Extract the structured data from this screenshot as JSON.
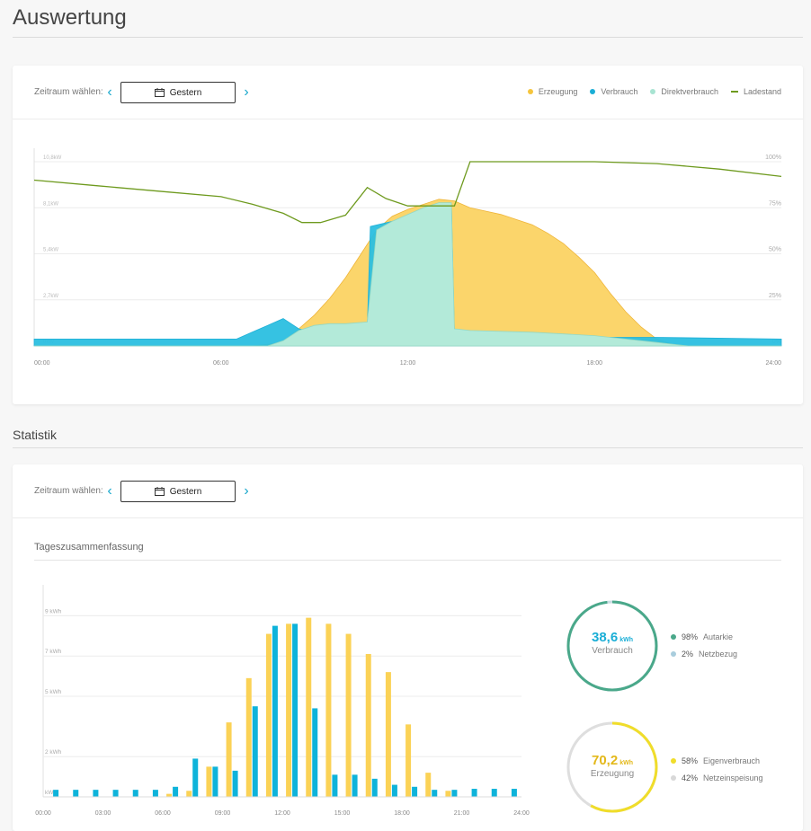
{
  "page": {
    "title": "Auswertung"
  },
  "period": {
    "label": "Zeitraum wählen:",
    "value": "Gestern",
    "prev_icon": "chevron-left-icon",
    "next_icon": "chevron-right-icon",
    "calendar_icon": "calendar-icon"
  },
  "colors": {
    "erzeugung": "#fbd56b",
    "verbrauch": "#2bbfe0",
    "direkt": "#b3ead9",
    "ladestand": "#6e9a1e",
    "bar_yellow": "#fbd256",
    "bar_blue": "#0eb3da",
    "ring_green": "#4aa88a",
    "ring_yellow": "#f0dd2a"
  },
  "legend": [
    {
      "label": "Erzeugung",
      "type": "dot",
      "color": "#f5c53d"
    },
    {
      "label": "Verbrauch",
      "type": "dot",
      "color": "#1aaed6"
    },
    {
      "label": "Direktverbrauch",
      "type": "dot",
      "color": "#a8e4d2"
    },
    {
      "label": "Ladestand",
      "type": "line",
      "color": "#6e9a1e"
    }
  ],
  "chart_data": [
    {
      "type": "area",
      "title": "",
      "x_ticks": [
        "00:00",
        "06:00",
        "12:00",
        "18:00",
        "24:00"
      ],
      "y_left_ticks": [
        "10,8kW",
        "8,1kW",
        "5,4kW",
        "2,7kW",
        "0kW"
      ],
      "y_right_ticks": [
        "100%",
        "75%",
        "50%",
        "25%",
        "0%"
      ],
      "ylim_left": [
        0,
        10.8
      ],
      "ylim_right": [
        0,
        100
      ],
      "xlim_hours": [
        0,
        24
      ],
      "series": [
        {
          "name": "Erzeugung",
          "hours": [
            0,
            7.0,
            8.0,
            8.5,
            9.0,
            9.5,
            10.0,
            10.5,
            11.0,
            11.5,
            12.0,
            12.5,
            13.0,
            13.5,
            14.0,
            14.5,
            15.0,
            15.5,
            16.0,
            16.5,
            17.0,
            17.5,
            18.0,
            18.5,
            19.0,
            19.5,
            20.0,
            20.5,
            21.0,
            24
          ],
          "values": [
            0,
            0,
            0.2,
            1.0,
            1.8,
            2.8,
            4.0,
            5.4,
            6.8,
            7.6,
            8.0,
            8.3,
            8.6,
            8.5,
            8.1,
            7.9,
            7.7,
            7.4,
            7.1,
            6.6,
            6.0,
            5.2,
            4.3,
            3.1,
            2.0,
            1.1,
            0.4,
            0.1,
            0,
            0
          ]
        },
        {
          "name": "Direktverbrauch",
          "hours": [
            0,
            7.5,
            8.0,
            8.5,
            9.0,
            9.5,
            10.0,
            10.7,
            11.0,
            11.5,
            12.0,
            12.5,
            13.0,
            13.4,
            13.5,
            14.0,
            16.0,
            18.0,
            19.0,
            20.0,
            21.0,
            24
          ],
          "values": [
            0,
            0,
            0.3,
            0.9,
            1.2,
            1.3,
            1.3,
            1.4,
            6.8,
            7.3,
            7.7,
            8.1,
            8.4,
            8.4,
            1.0,
            0.9,
            0.8,
            0.6,
            0.4,
            0.2,
            0,
            0
          ]
        },
        {
          "name": "Verbrauch",
          "hours": [
            0,
            6.5,
            7.0,
            7.5,
            8.0,
            8.5,
            9.0,
            10.0,
            10.7,
            10.8,
            11.5,
            12.0,
            12.5,
            13.0,
            13.4,
            13.5,
            18.0,
            20.0,
            24
          ],
          "values": [
            0.4,
            0.4,
            0.8,
            1.2,
            1.6,
            1.0,
            0.8,
            0.9,
            1.0,
            7.0,
            7.3,
            7.6,
            7.9,
            8.3,
            8.3,
            0.6,
            0.5,
            0.5,
            0.4
          ]
        },
        {
          "name": "Ladestand",
          "hours": [
            0,
            2,
            4,
            6,
            7,
            8,
            8.6,
            9.2,
            10,
            10.7,
            11.3,
            12,
            12.8,
            13.5,
            14.0,
            16,
            18,
            20,
            22,
            24
          ],
          "values": [
            90,
            87,
            84,
            81,
            77,
            72,
            67,
            67,
            71,
            86,
            80,
            76,
            76,
            76,
            100,
            100,
            100,
            99,
            96,
            92
          ]
        }
      ]
    },
    {
      "type": "bar",
      "title": "Tageszusammenfassung",
      "x_ticks": [
        "00:00",
        "03:00",
        "06:00",
        "09:00",
        "12:00",
        "15:00",
        "18:00",
        "21:00",
        "24:00"
      ],
      "y_ticks": [
        "9 kWh",
        "7 kWh",
        "5 kWh",
        "2 kWh",
        "kWh"
      ],
      "ylim": [
        0,
        10
      ],
      "categories": [
        "00",
        "01",
        "02",
        "03",
        "04",
        "05",
        "06",
        "07",
        "08",
        "09",
        "10",
        "11",
        "12",
        "13",
        "14",
        "15",
        "16",
        "17",
        "18",
        "19",
        "20",
        "21",
        "22",
        "23"
      ],
      "series": [
        {
          "name": "Erzeugung",
          "values": [
            0,
            0,
            0,
            0,
            0,
            0,
            0.15,
            0.3,
            1.5,
            3.7,
            5.9,
            8.1,
            8.6,
            8.9,
            8.6,
            8.1,
            7.1,
            6.2,
            3.6,
            1.2,
            0.3,
            0,
            0,
            0
          ]
        },
        {
          "name": "Verbrauch",
          "values": [
            0.35,
            0.35,
            0.35,
            0.35,
            0.35,
            0.35,
            0.5,
            1.9,
            1.5,
            1.3,
            4.5,
            8.5,
            8.6,
            4.4,
            1.1,
            1.1,
            0.9,
            0.6,
            0.5,
            0.35,
            0.35,
            0.4,
            0.4,
            0.4
          ]
        }
      ]
    }
  ],
  "statistik": {
    "title": "Statistik",
    "subtitle": "Tageszusammenfassung",
    "verbrauch": {
      "value": "38,6",
      "unit": "kWh",
      "label": "Verbrauch",
      "autarkie_pct": "98%",
      "autarkie_label": "Autarkie",
      "netz_pct": "2%",
      "netz_label": "Netzbezug",
      "ring_fraction": 0.98
    },
    "erzeugung": {
      "value": "70,2",
      "unit": "kWh",
      "label": "Erzeugung",
      "eigen_pct": "58%",
      "eigen_label": "Eigenverbrauch",
      "einspeis_pct": "42%",
      "einspeis_label": "Netzeinspeisung",
      "ring_fraction": 0.58
    }
  }
}
